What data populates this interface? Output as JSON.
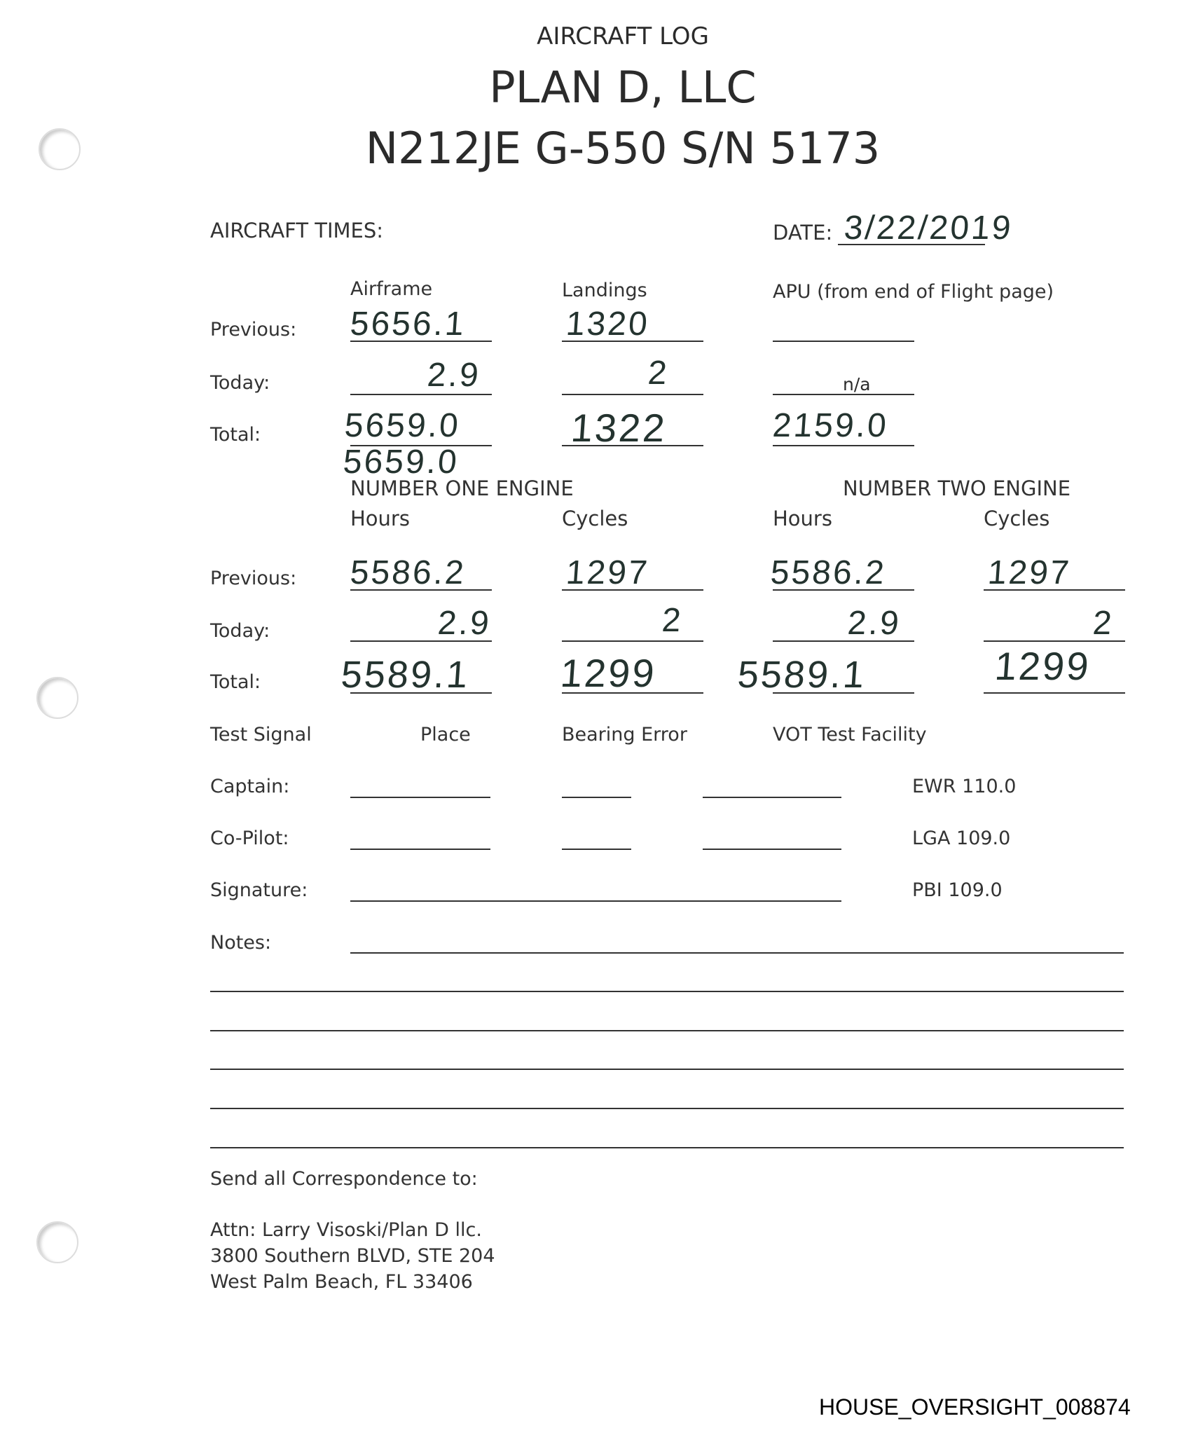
{
  "header": {
    "line1": "AIRCRAFT LOG",
    "line2": "PLAN D, LLC",
    "line3": "N212JE G-550 S/N 5173"
  },
  "aircraft_times": {
    "label": "AIRCRAFT TIMES:",
    "date_label": "DATE:",
    "date_value": "3/22/2019",
    "columns": [
      "Airframe",
      "Landings",
      "APU (from end of Flight page)"
    ],
    "rows": [
      {
        "label": "Previous:",
        "values": [
          "5656.1",
          "1320",
          ""
        ]
      },
      {
        "label": "Today:",
        "values": [
          "2.9",
          "2",
          "n/a"
        ]
      },
      {
        "label": "Total:",
        "values": [
          "5659.0",
          "1322",
          "2159.0"
        ]
      }
    ],
    "airframe_total_correction": "5659.0"
  },
  "engines": {
    "engine_one_title": "NUMBER ONE ENGINE",
    "engine_two_title": "NUMBER TWO ENGINE",
    "columns": [
      "Hours",
      "Cycles",
      "Hours",
      "Cycles"
    ],
    "rows": [
      {
        "label": "Previous:",
        "values": [
          "5586.2",
          "1297",
          "5586.2",
          "1297"
        ]
      },
      {
        "label": "Today:",
        "values": [
          "2.9",
          "2",
          "2.9",
          "2"
        ]
      },
      {
        "label": "Total:",
        "values": [
          "5589.1",
          "1299",
          "5589.1",
          "1299"
        ]
      }
    ]
  },
  "vot": {
    "columns": [
      "Test Signal",
      "Place",
      "Bearing Error",
      "VOT Test Facility"
    ],
    "captain_label": "Captain:",
    "copilot_label": "Co-Pilot:",
    "signature_label": "Signature:",
    "notes_label": "Notes:",
    "facilities": [
      "EWR 110.0",
      "LGA 109.0",
      "PBI 109.0"
    ]
  },
  "correspondence": {
    "heading": "Send all Correspondence to:",
    "lines": [
      "Attn: Larry Visoski/Plan D llc.",
      "3800 Southern BLVD, STE 204",
      "West Palm Beach, FL 33406"
    ]
  },
  "bates": "HOUSE_OVERSIGHT_008874"
}
